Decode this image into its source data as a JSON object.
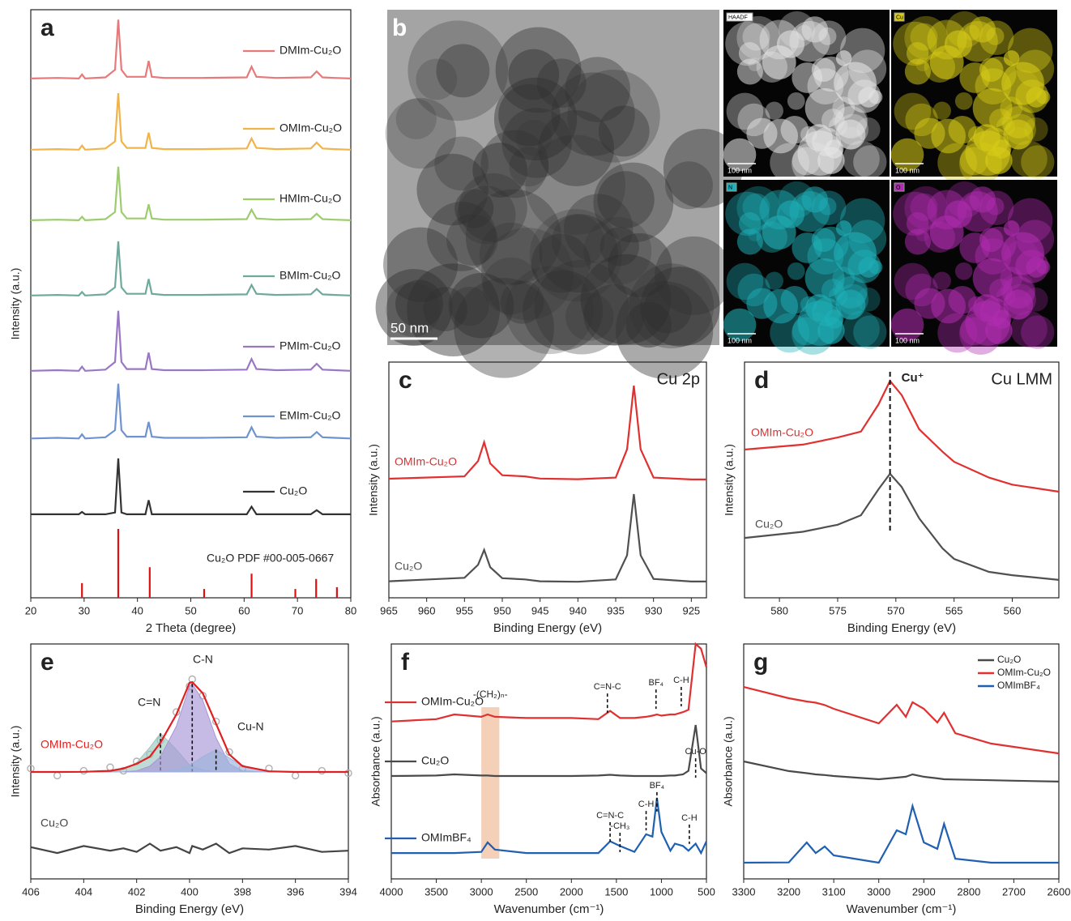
{
  "chart_data": [
    {
      "type": "line",
      "panel_label": "a",
      "xlabel": "2 Theta (degree)",
      "ylabel": "Intensity (a.u.)",
      "xlim": [
        20,
        80
      ],
      "xticks": [
        20,
        30,
        40,
        50,
        60,
        70,
        80
      ],
      "ylim": [
        0,
        100
      ],
      "x": [
        20,
        25,
        29,
        29.6,
        30.2,
        34,
        35.8,
        36.4,
        37,
        38,
        41.5,
        42.1,
        42.7,
        45,
        52,
        60.5,
        61.4,
        62.3,
        66,
        72.5,
        73.6,
        74.7,
        77,
        80
      ],
      "series": [
        {
          "name": "DMIm-Cu₂O",
          "color": "#e8797a",
          "values": [
            88.3,
            88.4,
            88.3,
            89.0,
            88.3,
            88.5,
            89.8,
            98.3,
            89.8,
            88.6,
            88.6,
            91.3,
            88.6,
            88.4,
            88.4,
            88.5,
            90.3,
            88.6,
            88.4,
            88.5,
            89.5,
            88.5,
            88.4,
            88.3
          ]
        },
        {
          "name": "OMIm-Cu₂O",
          "color": "#f0b44a",
          "values": [
            76.2,
            76.3,
            76.2,
            76.9,
            76.2,
            76.4,
            77.6,
            85.8,
            77.6,
            76.5,
            76.5,
            79.1,
            76.5,
            76.3,
            76.3,
            76.4,
            78.1,
            76.5,
            76.3,
            76.4,
            77.4,
            76.4,
            76.3,
            76.2
          ]
        },
        {
          "name": "HMIm-Cu₂O",
          "color": "#9dcc6f",
          "values": [
            64.2,
            64.3,
            64.2,
            64.8,
            64.2,
            64.4,
            65.6,
            73.3,
            65.6,
            64.5,
            64.5,
            66.9,
            64.5,
            64.3,
            64.3,
            64.4,
            66.0,
            64.5,
            64.3,
            64.4,
            65.3,
            64.4,
            64.3,
            64.2
          ]
        },
        {
          "name": "BMIm-Cu₂O",
          "color": "#6fa99b",
          "values": [
            51.4,
            51.5,
            51.4,
            52.0,
            51.4,
            51.6,
            52.8,
            60.6,
            52.8,
            51.7,
            51.7,
            54.2,
            51.7,
            51.5,
            51.5,
            51.6,
            53.2,
            51.7,
            51.5,
            51.6,
            52.5,
            51.6,
            51.5,
            51.4
          ]
        },
        {
          "name": "PMIm-Cu₂O",
          "color": "#9a77c4",
          "values": [
            38.6,
            38.7,
            38.6,
            39.3,
            38.6,
            38.8,
            40.1,
            48.8,
            40.1,
            38.9,
            38.9,
            41.7,
            38.9,
            38.7,
            38.7,
            38.8,
            40.6,
            38.9,
            38.7,
            38.8,
            39.8,
            38.8,
            38.7,
            38.6
          ]
        },
        {
          "name": "EMIm-Cu₂O",
          "color": "#6f93cf",
          "values": [
            27.1,
            27.2,
            27.1,
            27.8,
            27.1,
            27.3,
            28.5,
            36.4,
            28.5,
            27.4,
            27.4,
            29.9,
            27.4,
            27.2,
            27.2,
            27.3,
            29.0,
            27.4,
            27.2,
            27.3,
            28.2,
            27.3,
            27.2,
            27.1
          ]
        },
        {
          "name": "Cu₂O",
          "color": "#333333",
          "values": [
            14.2,
            14.2,
            14.2,
            14.6,
            14.2,
            14.2,
            14.5,
            23.7,
            14.5,
            14.2,
            14.2,
            16.6,
            14.2,
            14.2,
            14.2,
            14.2,
            15.5,
            14.2,
            14.2,
            14.2,
            14.9,
            14.2,
            14.2,
            14.2
          ]
        }
      ],
      "reference": {
        "name": "Cu₂O PDF #00-005-0667",
        "color": "#e01010",
        "x": [
          29.6,
          36.4,
          42.3,
          52.5,
          61.4,
          69.6,
          73.5,
          77.4
        ],
        "values": [
          2.5,
          11.7,
          5.2,
          1.5,
          4.1,
          1.5,
          3.2,
          1.8
        ]
      }
    },
    {
      "type": "line",
      "panel_label": "c",
      "title": "Cu 2p",
      "xlabel": "Binding Energy (eV)",
      "ylabel": "Intensity (a.u.)",
      "xlim": [
        965,
        923
      ],
      "xticks": [
        965,
        960,
        955,
        950,
        945,
        940,
        935,
        930,
        925
      ],
      "ylim": [
        0,
        100
      ],
      "x": [
        965,
        955,
        953.2,
        952.4,
        951.6,
        950,
        947,
        945,
        940,
        935,
        933.5,
        932.6,
        931.7,
        930,
        925,
        923
      ],
      "series": [
        {
          "name": "OMIm-Cu₂O",
          "color": "#e03030",
          "values": [
            50.5,
            51.5,
            58,
            66,
            57,
            52,
            51.5,
            50.6,
            50.3,
            51,
            63,
            90,
            63,
            51,
            50.2,
            50.2
          ]
        },
        {
          "name": "Cu₂O",
          "color": "#505050",
          "values": [
            7.0,
            8.5,
            14,
            20.3,
            13,
            8.3,
            7.8,
            7.0,
            6.8,
            7.8,
            18,
            44,
            18,
            8,
            6.9,
            6.9
          ]
        }
      ]
    },
    {
      "type": "line",
      "panel_label": "d",
      "title": "Cu LMM",
      "xlabel": "Binding Energy (eV)",
      "ylabel": "Intensity (a.u.)",
      "xlim": [
        583,
        556
      ],
      "xticks": [
        580,
        575,
        570,
        565,
        560
      ],
      "ylim": [
        0,
        100
      ],
      "x": [
        583,
        578,
        575,
        573,
        571.5,
        570.5,
        569.5,
        568,
        566,
        565,
        562,
        560,
        556
      ],
      "series": [
        {
          "name": "OMIm-Cu₂O",
          "color": "#e03030",
          "values": [
            62.9,
            65,
            68,
            70.5,
            82,
            92,
            86,
            71.5,
            62,
            57.7,
            51,
            48,
            45
          ]
        },
        {
          "name": "Cu₂O",
          "color": "#505050",
          "values": [
            25.4,
            28,
            31,
            35,
            46,
            52.6,
            47,
            33.7,
            21,
            16.5,
            11,
            9.6,
            7.6
          ]
        }
      ],
      "marker": {
        "x": 570.5,
        "label": "Cu⁺"
      }
    },
    {
      "type": "line",
      "panel_label": "e",
      "xlabel": "Binding Energy (eV)",
      "ylabel": "Intensity (a.u.)",
      "xlim": [
        406,
        394
      ],
      "xticks": [
        406,
        404,
        402,
        400,
        398,
        396,
        394
      ],
      "ylim": [
        0,
        100
      ],
      "x": [
        406,
        405,
        404,
        403,
        402.5,
        402,
        401.5,
        401.1,
        400.5,
        400,
        399.9,
        399.5,
        399,
        398.5,
        398,
        397,
        396,
        395,
        394
      ],
      "series": [
        {
          "kind": "scatter",
          "color": "#b0b0b0",
          "values": [
            47,
            44,
            46,
            47.5,
            46,
            50,
            53,
            59,
            71,
            82,
            85,
            78,
            67,
            54,
            47,
            47,
            44,
            46,
            45
          ]
        },
        {
          "kind": "area",
          "name": "C=N",
          "color": "#9cc7c0",
          "values": [
            45.5,
            45.5,
            45.5,
            45.6,
            46.5,
            49.5,
            56,
            62,
            55,
            48.5,
            48,
            46.3,
            45.7,
            45.5,
            45.5,
            45.5,
            45.5,
            45.5,
            45.5
          ]
        },
        {
          "kind": "area",
          "name": "C-N",
          "color": "#a896d6",
          "values": [
            45.5,
            45.5,
            45.5,
            45.5,
            45.6,
            46,
            48,
            52,
            65,
            82,
            83,
            76,
            60,
            49,
            46,
            45.5,
            45.5,
            45.5,
            45.5
          ]
        },
        {
          "kind": "area",
          "name": "Cu-N",
          "color": "#9db3dc",
          "values": [
            45.5,
            45.5,
            45.5,
            45.5,
            45.5,
            45.5,
            45.6,
            45.8,
            46.5,
            48.5,
            49,
            52,
            55,
            51.5,
            48,
            45.8,
            45.5,
            45.5,
            45.5
          ]
        },
        {
          "name": "OMIm-Cu₂O",
          "color": "#e02020",
          "values": [
            45.5,
            45.5,
            45.6,
            46,
            47,
            49,
            52,
            58,
            70,
            83.5,
            83.8,
            79,
            66,
            53,
            48,
            45.8,
            45.5,
            45.5,
            45.5
          ]
        },
        {
          "name": "Cu₂O",
          "color": "#444444",
          "values": [
            13.5,
            11,
            14,
            12,
            13,
            11.5,
            15,
            12,
            13.5,
            11,
            14,
            12.5,
            15,
            11,
            13,
            12.5,
            14,
            11.5,
            12
          ]
        }
      ]
    },
    {
      "type": "line",
      "panel_label": "f",
      "xlabel": "Wavenumber (cm⁻¹)",
      "ylabel": "Absorbance (a.u.)",
      "xlim": [
        4000,
        500
      ],
      "xticks": [
        4000,
        3500,
        3000,
        2500,
        2000,
        1500,
        1000,
        500
      ],
      "ylim": [
        0,
        100
      ],
      "x": [
        4000,
        3500,
        3300,
        3000,
        2930,
        2850,
        2500,
        2000,
        1700,
        1570,
        1460,
        1300,
        1170,
        1100,
        1050,
        1000,
        900,
        850,
        760,
        700,
        620,
        560,
        500
      ],
      "series": [
        {
          "name": "OMIm-Cu₂O",
          "color": "#e03030",
          "values": [
            67,
            68,
            70,
            69,
            70,
            69,
            68.5,
            68.5,
            68,
            71.5,
            68.5,
            68.5,
            69,
            69.5,
            70,
            69.5,
            70,
            70,
            71,
            72,
            100,
            98,
            90
          ]
        },
        {
          "name": "Cu₂O",
          "color": "#4a4a4a",
          "values": [
            43.8,
            44,
            44.5,
            44,
            44,
            43.8,
            43.8,
            43.8,
            44,
            44.3,
            44,
            43.8,
            43.8,
            43.8,
            43.8,
            43.8,
            44,
            44,
            44.5,
            46,
            65.5,
            47,
            45
          ]
        },
        {
          "name": "OMImBF₄",
          "color": "#2060b0",
          "values": [
            11,
            11,
            11,
            11.5,
            15.5,
            12.5,
            11,
            11,
            11,
            16,
            14,
            11.5,
            19,
            18,
            34.5,
            20,
            12,
            15,
            14,
            12,
            15,
            11,
            16
          ]
        }
      ],
      "highlight": {
        "range": [
          3000,
          2800
        ],
        "label": "-(CH₂)ₙ-",
        "color": "#f2c4a6"
      },
      "annotations": [
        {
          "label": "C=N-C",
          "x": 1600,
          "y": 81.7
        },
        {
          "label": "BF₄",
          "x": 1060,
          "y": 83.4
        },
        {
          "label": "C-H",
          "x": 780,
          "y": 84.5
        },
        {
          "label": "Cu-O",
          "x": 620,
          "y": 54.1
        },
        {
          "label": "C=N-C",
          "x": 1570,
          "y": 26.9
        },
        {
          "label": "-CH₃",
          "x": 1460,
          "y": 22.4
        },
        {
          "label": "C-H",
          "x": 1170,
          "y": 31.7
        },
        {
          "label": "BF₄",
          "x": 1050,
          "y": 39.7
        },
        {
          "label": "C-H",
          "x": 690,
          "y": 25.9
        }
      ]
    },
    {
      "type": "line",
      "panel_label": "g",
      "xlabel": "Wavenumber (cm⁻¹)",
      "ylabel": "Absorbance (a.u.)",
      "xlim": [
        3300,
        2600
      ],
      "xticks": [
        3300,
        3200,
        3100,
        3000,
        2900,
        2800,
        2700,
        2600
      ],
      "ylim": [
        0,
        100
      ],
      "legend": "top-right",
      "x": [
        3300,
        3200,
        3160,
        3140,
        3120,
        3100,
        3000,
        2960,
        2940,
        2925,
        2900,
        2870,
        2855,
        2830,
        2750,
        2700,
        2600
      ],
      "series": [
        {
          "name": "Cu₂O",
          "color": "#4a4a4a",
          "values": [
            50,
            45.9,
            45,
            44.5,
            44.2,
            43.8,
            42.4,
            43.1,
            43.5,
            44.5,
            43.5,
            42.8,
            42.4,
            42.3,
            42,
            41.8,
            41.4
          ]
        },
        {
          "name": "OMIm-Cu₂O",
          "color": "#e03030",
          "values": [
            81.7,
            76.9,
            75.5,
            75,
            74,
            72.4,
            66.2,
            74.1,
            69,
            75.2,
            72.4,
            66.6,
            70.7,
            62,
            57.6,
            56.2,
            53.4
          ]
        },
        {
          "name": "OMImBF₄",
          "color": "#2060b0",
          "values": [
            6.9,
            7,
            15.5,
            11,
            13.8,
            10,
            6.9,
            20.7,
            19,
            31,
            15.5,
            12.8,
            23.4,
            8.6,
            6.9,
            6.9,
            6.9
          ]
        }
      ]
    }
  ],
  "micrograph": {
    "panel_label": "b",
    "scale_bar": "50 nm",
    "maps": [
      {
        "label": "HAADF",
        "scale_bar": "100 nm",
        "color": "#e6e6e6"
      },
      {
        "label": "Cu",
        "scale_bar": "100 nm",
        "color": "#d8cc18"
      },
      {
        "label": "N",
        "scale_bar": "100 nm",
        "color": "#1fb0b8"
      },
      {
        "label": "O",
        "scale_bar": "100 nm",
        "color": "#b02cb0"
      }
    ]
  }
}
